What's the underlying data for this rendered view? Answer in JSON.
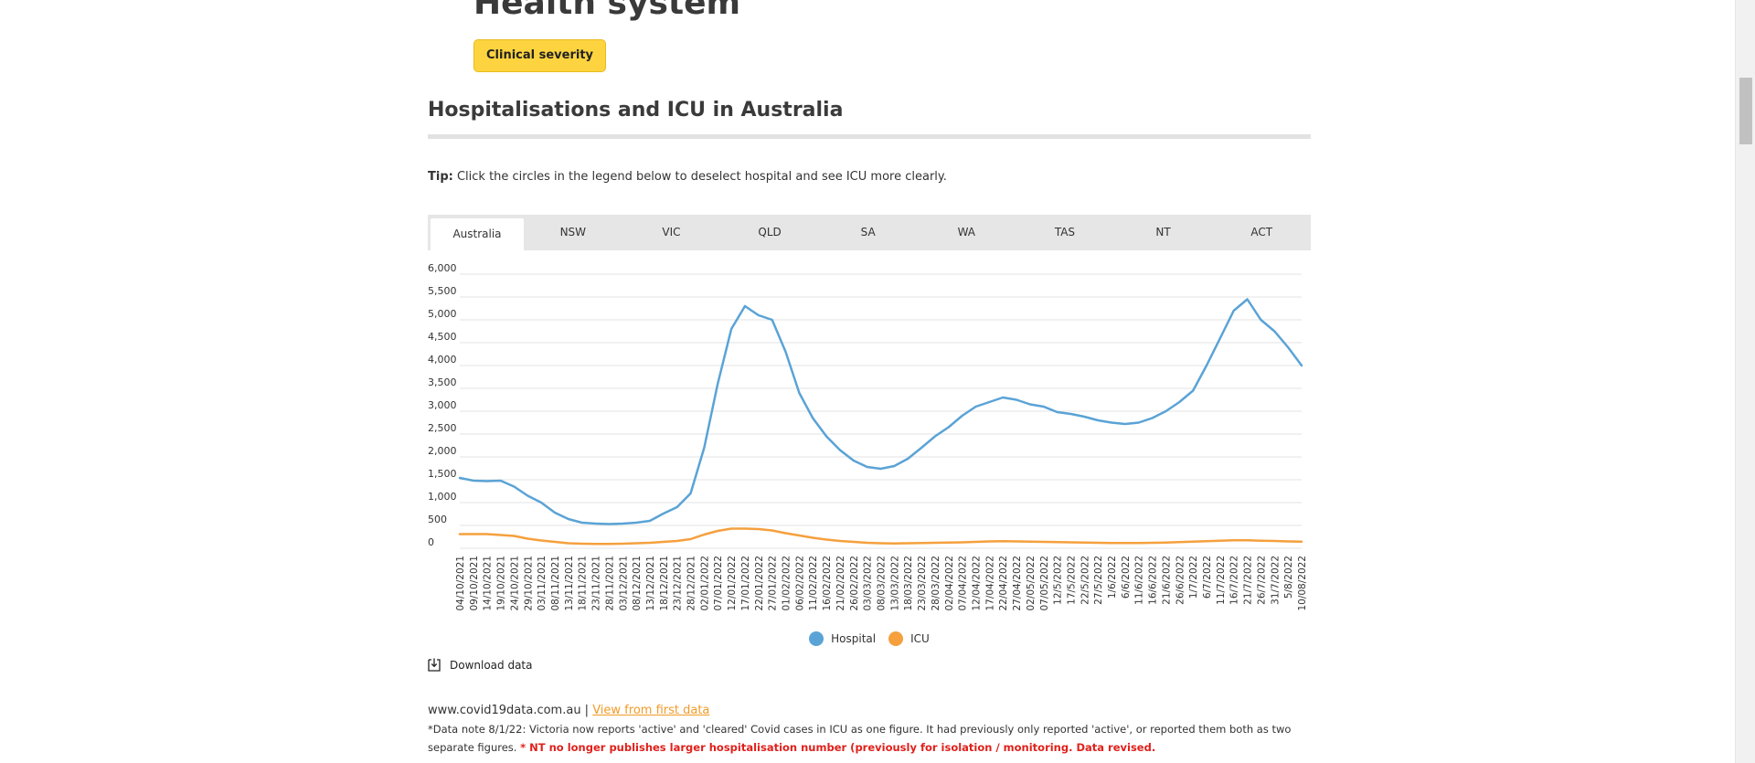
{
  "page": {
    "section_title": "Health system",
    "severity_button": "Clinical severity",
    "chart_title": "Hospitalisations and ICU in Australia",
    "tip_label": "Tip:",
    "tip_text": " Click the circles in the legend below to deselect hospital and see ICU more clearly.",
    "tabs": [
      "Australia",
      "NSW",
      "VIC",
      "QLD",
      "SA",
      "WA",
      "TAS",
      "NT",
      "ACT"
    ],
    "active_tab": "Australia",
    "download_label": "Download data",
    "source_text": "www.covid19data.com.au | ",
    "source_link": "View from first data",
    "note_text": "*Data note 8/1/22: Victoria now reports 'active' and 'cleared' Covid cases in ICU as one figure. It had previously only reported 'active', or reported them both as two separate figures. ",
    "note_red": "* NT no longer publishes larger hospitalisation number (previously for isolation / monitoring. Data revised."
  },
  "colors": {
    "hospital": "#5aa3d6",
    "icu": "#f5a03d",
    "button": "#fdd440",
    "link": "#f39a26",
    "warning": "#e0201b"
  },
  "icons": {
    "download": "download-icon"
  },
  "chart_data": {
    "type": "line",
    "title": "",
    "xlabel": "",
    "ylabel": "",
    "ylim": [
      0,
      6000
    ],
    "yticks": [
      0,
      500,
      1000,
      1500,
      2000,
      2500,
      3000,
      3500,
      4000,
      4500,
      5000,
      5500,
      6000
    ],
    "ytick_labels": [
      "0",
      "500",
      "1,000",
      "1,500",
      "2,000",
      "2,500",
      "3,000",
      "3,500",
      "4,000",
      "4,500",
      "5,000",
      "5,500",
      "6,000"
    ],
    "grid": true,
    "legend": "bottom",
    "x": [
      "04/10/2021",
      "09/10/2021",
      "14/10/2021",
      "19/10/2021",
      "24/10/2021",
      "29/10/2021",
      "03/11/2021",
      "08/11/2021",
      "13/11/2021",
      "18/11/2021",
      "23/11/2021",
      "28/11/2021",
      "03/12/2021",
      "08/12/2021",
      "13/12/2021",
      "18/12/2021",
      "23/12/2021",
      "28/12/2021",
      "02/01/2022",
      "07/01/2022",
      "12/01/2022",
      "17/01/2022",
      "22/01/2022",
      "27/01/2022",
      "01/02/2022",
      "06/02/2022",
      "11/02/2022",
      "16/02/2022",
      "21/02/2022",
      "26/02/2022",
      "03/03/2022",
      "08/03/2022",
      "13/03/2022",
      "18/03/2022",
      "23/03/2022",
      "28/03/2022",
      "02/04/2022",
      "07/04/2022",
      "12/04/2022",
      "17/04/2022",
      "22/04/2022",
      "27/04/2022",
      "02/05/2022",
      "07/05/2022",
      "12/5/2022",
      "17/5/2022",
      "22/5/2022",
      "27/5/2022",
      "1/6/2022",
      "6/6/2022",
      "11/6/2022",
      "16/6/2022",
      "21/6/2022",
      "26/6/2022",
      "1/7/2022",
      "6/7/2022",
      "11/7/2022",
      "16/7/2022",
      "21/7/2022",
      "26/7/2022",
      "31/7/2022",
      "5/8/2022",
      "10/08/2022"
    ],
    "series": [
      {
        "name": "Hospital",
        "values": [
          1540,
          1480,
          1470,
          1480,
          1350,
          1150,
          1000,
          780,
          640,
          560,
          540,
          530,
          540,
          560,
          600,
          760,
          900,
          1200,
          2200,
          3600,
          4800,
          5300,
          5100,
          5000,
          4300,
          3400,
          2850,
          2450,
          2150,
          1920,
          1780,
          1740,
          1800,
          1960,
          2200,
          2450,
          2650,
          2900,
          3100,
          3200,
          3300,
          3250,
          3150,
          3100,
          2980,
          2940,
          2880,
          2800,
          2750,
          2720,
          2750,
          2850,
          3000,
          3200,
          3450,
          4000,
          4600,
          5200,
          5450,
          5000,
          4750,
          4400,
          4000
        ]
      },
      {
        "name": "ICU",
        "values": [
          310,
          310,
          310,
          290,
          270,
          210,
          170,
          140,
          110,
          100,
          95,
          95,
          100,
          110,
          120,
          140,
          160,
          200,
          300,
          380,
          430,
          430,
          420,
          390,
          330,
          280,
          230,
          190,
          160,
          140,
          120,
          110,
          105,
          110,
          115,
          120,
          125,
          130,
          140,
          150,
          155,
          150,
          145,
          140,
          135,
          130,
          125,
          120,
          115,
          115,
          115,
          120,
          125,
          135,
          145,
          155,
          165,
          175,
          175,
          165,
          160,
          150,
          145
        ]
      }
    ]
  }
}
